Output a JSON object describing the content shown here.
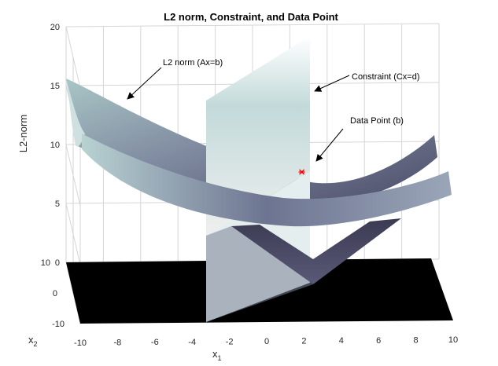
{
  "chart_data": {
    "type": "surface3d",
    "title": "L2 norm, Constraint, and Data Point",
    "zlabel": "L2-norm",
    "xlabel": "x",
    "xlabel_sub": "1",
    "ylabel": "x",
    "ylabel_sub": "2",
    "xlim": [
      -10,
      10
    ],
    "ylim": [
      -10,
      10
    ],
    "zlim": [
      0,
      20
    ],
    "x_ticks": [
      "-10",
      "-8",
      "-6",
      "-4",
      "-2",
      "0",
      "2",
      "4",
      "6",
      "8",
      "10"
    ],
    "y_ticks": [
      "-10",
      "0",
      "10"
    ],
    "z_ticks": [
      "0",
      "5",
      "10",
      "15",
      "20"
    ],
    "grid": true,
    "colormap": "bone",
    "data_point": {
      "x": 2,
      "y": 2,
      "z": 0,
      "color": "#ff0000"
    },
    "constraint_plane": {
      "x1": -3
    },
    "annotations": [
      {
        "text": "L2 norm (Ax=b)",
        "points_to": "norm surface"
      },
      {
        "text": "Constraint (Cx=d)",
        "points_to": "constraint plane"
      },
      {
        "text": "Data Point (b)",
        "points_to": "data point"
      }
    ]
  }
}
